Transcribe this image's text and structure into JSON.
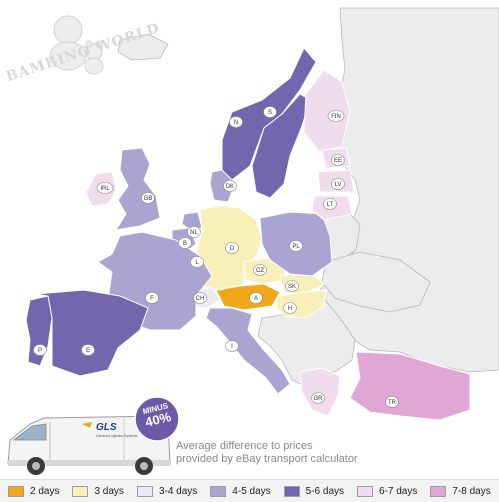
{
  "brand": {
    "logo_text": "BAMBINO WORLD"
  },
  "promo": {
    "van_brand": "GLS",
    "van_subtext": "General Logistics Systems",
    "badge_line1": "MINUS",
    "badge_line2": "40%",
    "note_line1": "Average difference to prices",
    "note_line2": "provided by eBay transport calculator"
  },
  "legend": [
    {
      "label": "2 days",
      "color": "#f0a818"
    },
    {
      "label": "3 days",
      "color": "#f8f0b8"
    },
    {
      "label": "3-4 days",
      "color": "#eaeaf4"
    },
    {
      "label": "4-5 days",
      "color": "#a9a4d2"
    },
    {
      "label": "5-6 days",
      "color": "#7466ae"
    },
    {
      "label": "6-7 days",
      "color": "#f1dcee"
    },
    {
      "label": "7-8 days",
      "color": "#e0a6d4"
    }
  ],
  "countries": [
    {
      "code": "A",
      "category": "2 days"
    },
    {
      "code": "D",
      "category": "3 days"
    },
    {
      "code": "CZ",
      "category": "3 days"
    },
    {
      "code": "SK",
      "category": "3 days"
    },
    {
      "code": "H",
      "category": "3 days"
    },
    {
      "code": "CH",
      "category": "3-4 days"
    },
    {
      "code": "L",
      "category": "3-4 days"
    },
    {
      "code": "NL",
      "category": "4-5 days"
    },
    {
      "code": "B",
      "category": "4-5 days"
    },
    {
      "code": "F",
      "category": "4-5 days"
    },
    {
      "code": "GB",
      "category": "4-5 days"
    },
    {
      "code": "DK",
      "category": "4-5 days"
    },
    {
      "code": "PL",
      "category": "4-5 days"
    },
    {
      "code": "I",
      "category": "4-5 days"
    },
    {
      "code": "E",
      "category": "5-6 days"
    },
    {
      "code": "P",
      "category": "5-6 days"
    },
    {
      "code": "N",
      "category": "5-6 days"
    },
    {
      "code": "S",
      "category": "5-6 days"
    },
    {
      "code": "IRL",
      "category": "6-7 days"
    },
    {
      "code": "FIN",
      "category": "6-7 days"
    },
    {
      "code": "EE",
      "category": "6-7 days"
    },
    {
      "code": "LV",
      "category": "6-7 days"
    },
    {
      "code": "LT",
      "category": "6-7 days"
    },
    {
      "code": "GR",
      "category": "6-7 days"
    },
    {
      "code": "TR",
      "category": "7-8 days"
    }
  ]
}
